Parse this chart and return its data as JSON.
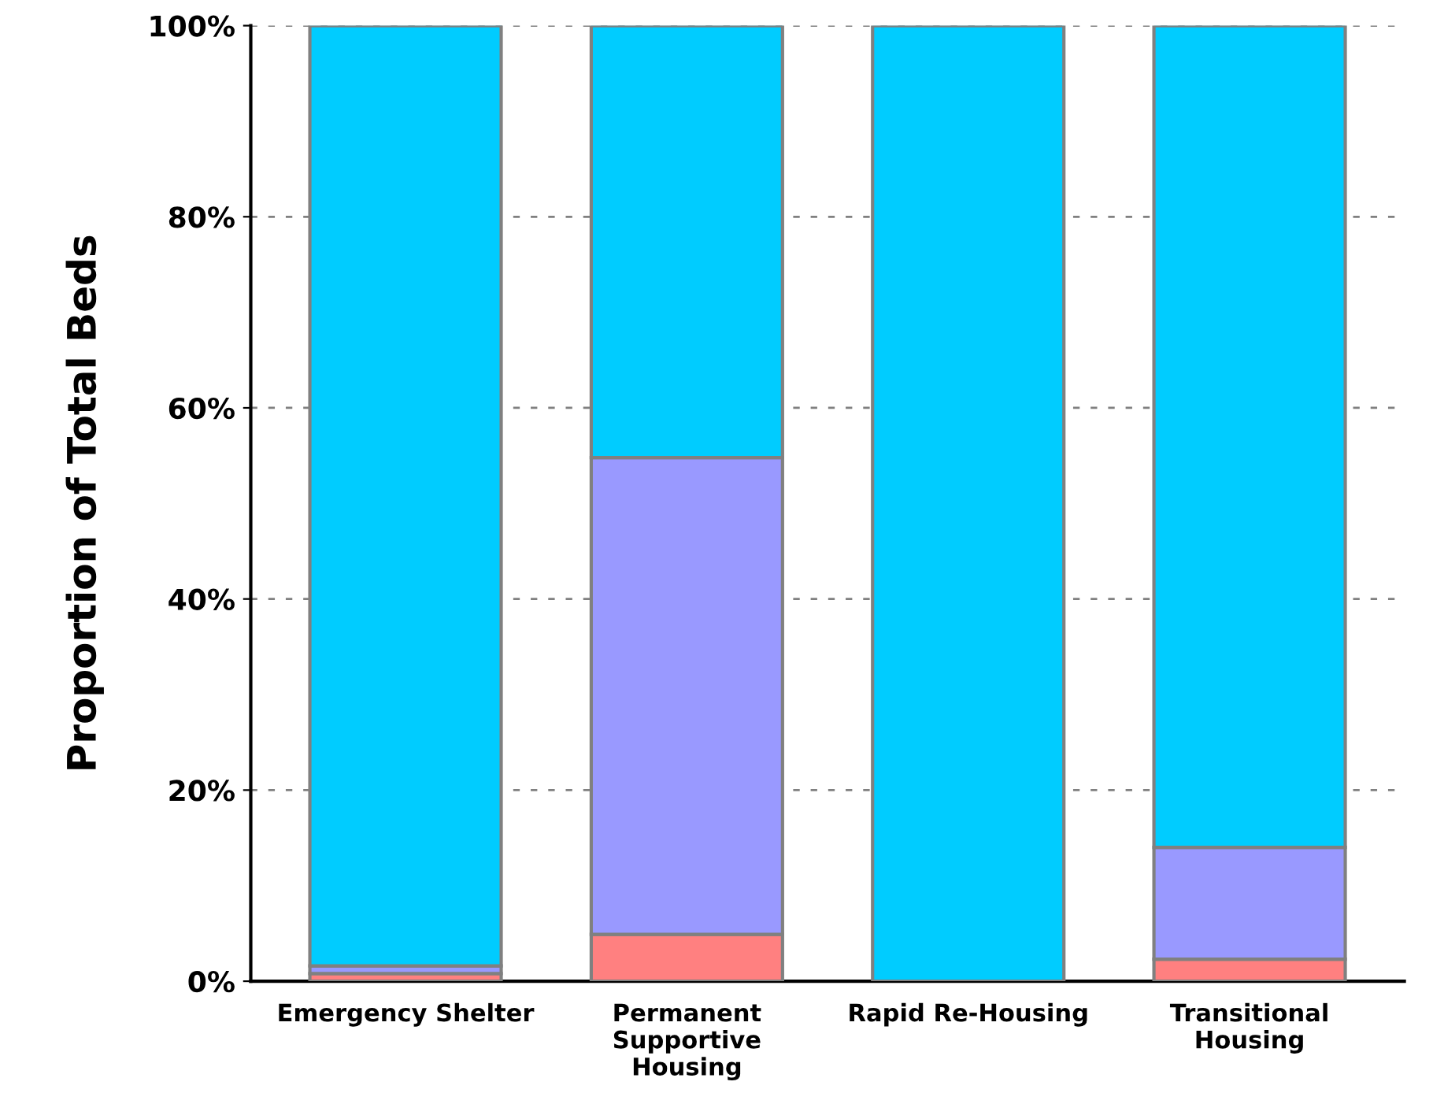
{
  "chart_data": {
    "type": "bar",
    "stacked": true,
    "ylabel": "Proportion of Total Beds",
    "categories": [
      "Emergency Shelter",
      "Permanent Supportive Housing",
      "Rapid Re-Housing",
      "Transitional Housing"
    ],
    "series": [
      {
        "color": "#ff8080",
        "values": [
          0.8,
          4.9,
          null,
          2.3
        ]
      },
      {
        "color": "#9999ff",
        "values": [
          0.8,
          49.9,
          0,
          11.7
        ]
      },
      {
        "color": "#00ccff",
        "values": [
          98.4,
          45.2,
          100,
          86.0
        ]
      }
    ],
    "ylim": [
      0,
      100
    ],
    "yticks": [
      {
        "value": 0,
        "label": "0%"
      },
      {
        "value": 20,
        "label": "20%"
      },
      {
        "value": 40,
        "label": "40%"
      },
      {
        "value": 60,
        "label": "60%"
      },
      {
        "value": 80,
        "label": "80%"
      },
      {
        "value": 100,
        "label": "100%"
      }
    ],
    "grid": "y"
  }
}
